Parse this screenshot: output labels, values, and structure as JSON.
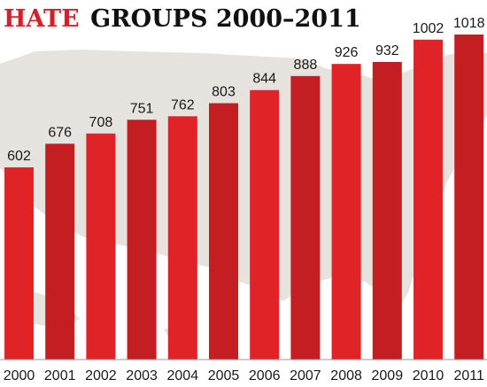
{
  "chart_data": {
    "type": "bar",
    "title_accent": "HATE",
    "title_rest": "GROUPS 2000–2011",
    "categories": [
      "2000",
      "2001",
      "2002",
      "2003",
      "2004",
      "2005",
      "2006",
      "2007",
      "2008",
      "2009",
      "2010",
      "2011"
    ],
    "values": [
      602,
      676,
      708,
      751,
      762,
      803,
      844,
      888,
      926,
      932,
      1002,
      1018
    ],
    "ylim": [
      0,
      1018
    ],
    "grid": false,
    "legend": "none",
    "colors": {
      "bar": "#e02327",
      "bar_dark": "#c41d22",
      "title_accent": "#d61f26",
      "title_rest": "#111111",
      "map": "#e6e2dd"
    }
  }
}
